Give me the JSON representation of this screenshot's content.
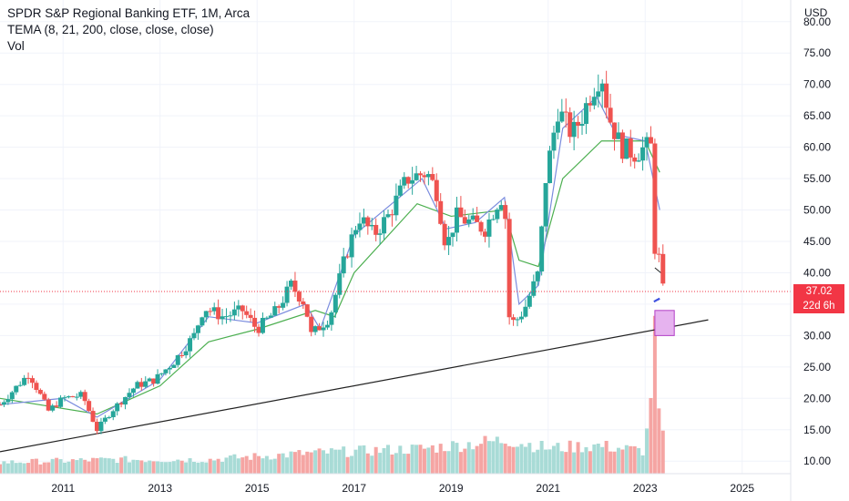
{
  "legend": {
    "title": "SPDR S&P Regional Banking ETF, 1M, Arca",
    "indicator": "TEMA (8, 21, 200, close, close, close)",
    "volume": "Vol"
  },
  "price_axis": {
    "currency": "USD"
  },
  "last_price": {
    "value": "37.02",
    "countdown": "22d 6h"
  },
  "colors": {
    "up": "#26a69a",
    "down": "#ef5350",
    "vol_up": "#a8dbd6",
    "vol_down": "#f5a5a3",
    "tema_fast": "#7b8cde",
    "tema_mid": "#4caf50",
    "tema_long": "#3f51e0",
    "trendline": "#222222",
    "zone_fill": "#e6b3ef",
    "zone_stroke": "#b23fc7",
    "price_line": "#f23645",
    "grid": "#f0f3fa"
  },
  "chart_data": {
    "type": "candlestick",
    "interval": "1M",
    "y_axis": {
      "range": [
        8,
        82
      ],
      "ticks": [
        "10.00",
        "15.00",
        "20.00",
        "25.00",
        "30.00",
        "35.00",
        "40.00",
        "45.00",
        "50.00",
        "55.00",
        "60.00",
        "65.00",
        "70.00",
        "75.00",
        "80.00"
      ]
    },
    "x_axis": {
      "range": [
        2009.7,
        2026.0
      ],
      "ticks": [
        "2011",
        "2013",
        "2015",
        "2017",
        "2019",
        "2021",
        "2023",
        "2025"
      ]
    },
    "anchors": [
      [
        2009.7,
        19
      ],
      [
        2010.3,
        24
      ],
      [
        2010.7,
        18
      ],
      [
        2011.0,
        20
      ],
      [
        2011.4,
        20.5
      ],
      [
        2011.7,
        15
      ],
      [
        2012.0,
        18
      ],
      [
        2012.5,
        22
      ],
      [
        2012.9,
        23
      ],
      [
        2013.3,
        26
      ],
      [
        2013.7,
        30
      ],
      [
        2013.9,
        34.5
      ],
      [
        2014.3,
        33
      ],
      [
        2014.7,
        34
      ],
      [
        2015.0,
        31
      ],
      [
        2015.4,
        34
      ],
      [
        2015.7,
        38
      ],
      [
        2016.0,
        35
      ],
      [
        2016.1,
        30
      ],
      [
        2016.5,
        33
      ],
      [
        2016.8,
        42
      ],
      [
        2017.1,
        49
      ],
      [
        2017.4,
        46
      ],
      [
        2017.7,
        49
      ],
      [
        2018.1,
        55
      ],
      [
        2018.5,
        56
      ],
      [
        2018.7,
        53
      ],
      [
        2018.9,
        44
      ],
      [
        2019.1,
        49
      ],
      [
        2019.4,
        48
      ],
      [
        2019.7,
        47
      ],
      [
        2020.0,
        52
      ],
      [
        2020.1,
        52
      ],
      [
        2020.2,
        33
      ],
      [
        2020.3,
        32
      ],
      [
        2020.5,
        34
      ],
      [
        2020.8,
        40
      ],
      [
        2020.95,
        55
      ],
      [
        2021.2,
        66
      ],
      [
        2021.5,
        62
      ],
      [
        2021.7,
        65
      ],
      [
        2021.9,
        69
      ],
      [
        2022.1,
        72
      ],
      [
        2022.25,
        65
      ],
      [
        2022.5,
        60
      ],
      [
        2022.8,
        59
      ],
      [
        2023.0,
        60
      ],
      [
        2023.12,
        60
      ],
      [
        2023.2,
        44
      ],
      [
        2023.3,
        42
      ],
      [
        2023.37,
        37
      ]
    ],
    "volume_anchors": [
      [
        2009.7,
        0.2
      ],
      [
        2012.0,
        0.25
      ],
      [
        2014.0,
        0.25
      ],
      [
        2016.0,
        0.36
      ],
      [
        2018.5,
        0.45
      ],
      [
        2020.2,
        0.6
      ],
      [
        2021.0,
        0.45
      ],
      [
        2022.0,
        0.5
      ],
      [
        2023.0,
        0.4
      ],
      [
        2023.2,
        2.3
      ],
      [
        2023.28,
        1.1
      ],
      [
        2023.37,
        0.6
      ]
    ],
    "overlays": {
      "tema_8": [
        [
          2009.7,
          19
        ],
        [
          2011.0,
          20
        ],
        [
          2011.7,
          17
        ],
        [
          2013.0,
          23
        ],
        [
          2014.0,
          33
        ],
        [
          2015.0,
          32
        ],
        [
          2016.0,
          35
        ],
        [
          2016.3,
          31
        ],
        [
          2017.0,
          46
        ],
        [
          2018.4,
          55
        ],
        [
          2018.9,
          47
        ],
        [
          2019.5,
          48
        ],
        [
          2020.1,
          52
        ],
        [
          2020.4,
          35
        ],
        [
          2020.8,
          38
        ],
        [
          2021.3,
          63
        ],
        [
          2022.0,
          68
        ],
        [
          2022.4,
          62
        ],
        [
          2023.0,
          61
        ],
        [
          2023.3,
          50
        ]
      ],
      "tema_21": [
        [
          2009.7,
          20
        ],
        [
          2011.7,
          17.5
        ],
        [
          2013.0,
          22
        ],
        [
          2014.0,
          29
        ],
        [
          2015.0,
          31
        ],
        [
          2016.2,
          34
        ],
        [
          2016.6,
          33
        ],
        [
          2017.0,
          40
        ],
        [
          2018.3,
          51
        ],
        [
          2019.0,
          49
        ],
        [
          2020.1,
          50
        ],
        [
          2020.4,
          42
        ],
        [
          2020.8,
          41
        ],
        [
          2021.3,
          55
        ],
        [
          2022.1,
          61
        ],
        [
          2023.0,
          61
        ],
        [
          2023.3,
          56
        ]
      ],
      "tema_200": [
        [
          2023.18,
          35.4
        ],
        [
          2023.25,
          35.7
        ],
        [
          2023.3,
          35.9
        ]
      ],
      "trendline": [
        [
          2009.7,
          11.5
        ],
        [
          2024.3,
          32.5
        ]
      ],
      "zone": {
        "x": [
          2023.2,
          2023.6
        ],
        "y": [
          30.0,
          34.0
        ]
      },
      "connector": [
        [
          2023.2,
          40.8
        ],
        [
          2023.37,
          39.7
        ]
      ]
    },
    "last_value": 37.02
  }
}
